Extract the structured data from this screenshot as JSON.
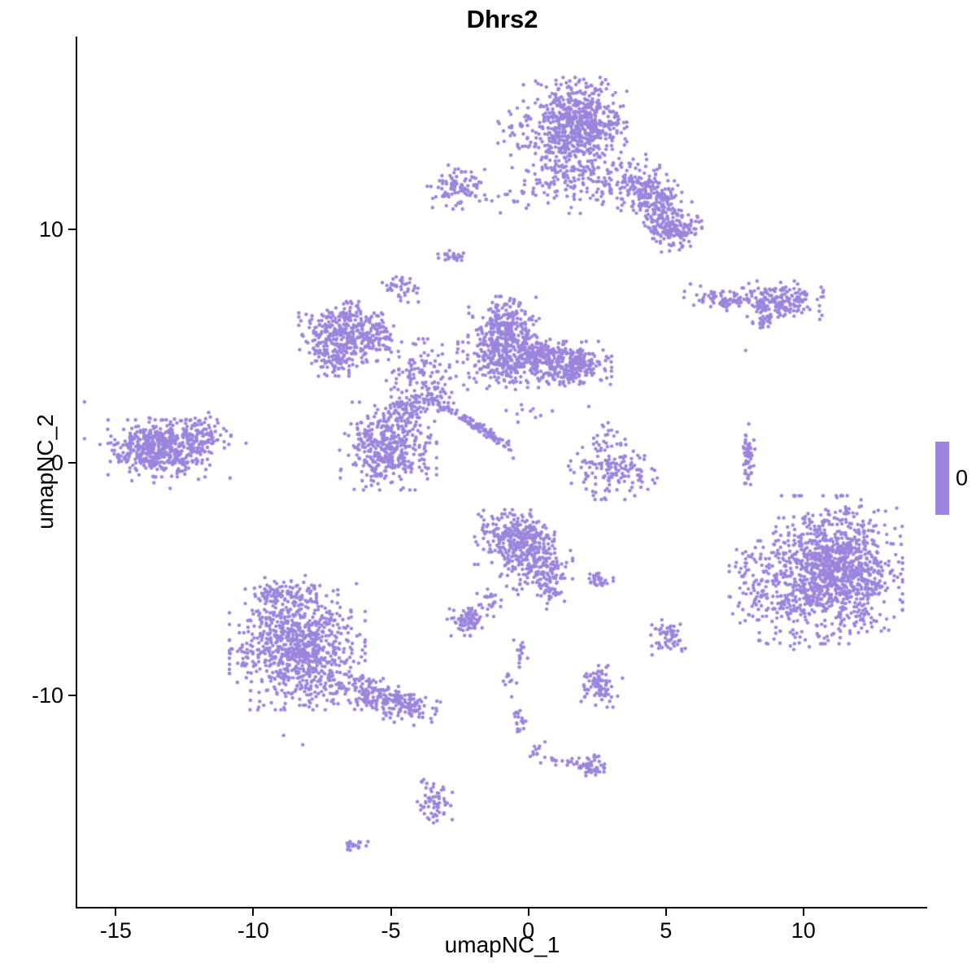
{
  "title": "Dhrs2",
  "chart_data": {
    "type": "scatter",
    "title": "Dhrs2",
    "xlabel": "umapNC_1",
    "ylabel": "umapNC_2",
    "xlim": [
      -16.4,
      14.5
    ],
    "ylim": [
      -19.05,
      18.25
    ],
    "x_ticks": [
      -15,
      -10,
      -5,
      0,
      5,
      10
    ],
    "y_ticks": [
      -10,
      0,
      10
    ],
    "grid": false,
    "legend_position": "right",
    "legend": {
      "label": "0",
      "color": "#9C85DC"
    },
    "point_color": "#9C85DC",
    "point_radius": 2.2,
    "cluster_fields": [
      "cx",
      "cy",
      "sx",
      "sy",
      "n",
      "rot_deg"
    ],
    "clusters": [
      [
        1.7,
        14.5,
        0.8,
        0.85,
        650,
        0
      ],
      [
        1.8,
        12.2,
        1.05,
        0.65,
        170,
        0
      ],
      [
        -0.3,
        14.2,
        0.4,
        0.55,
        35,
        0
      ],
      [
        4.45,
        11.3,
        0.85,
        0.5,
        280,
        -50
      ],
      [
        5.25,
        9.95,
        0.45,
        0.4,
        130,
        0
      ],
      [
        -2.5,
        11.8,
        0.5,
        0.4,
        95,
        0
      ],
      [
        -0.6,
        11.3,
        0.5,
        0.35,
        15,
        0
      ],
      [
        -2.85,
        8.85,
        0.28,
        0.15,
        25,
        0
      ],
      [
        -4.65,
        7.45,
        0.3,
        0.25,
        40,
        0
      ],
      [
        7.3,
        7.0,
        0.7,
        0.22,
        90,
        -5
      ],
      [
        9.2,
        6.95,
        0.65,
        0.35,
        170,
        0
      ],
      [
        8.6,
        6.05,
        0.25,
        0.12,
        22,
        0
      ],
      [
        -6.7,
        5.6,
        0.7,
        0.55,
        300,
        0
      ],
      [
        -7.0,
        4.5,
        0.5,
        0.4,
        100,
        0
      ],
      [
        -5.6,
        5.4,
        0.45,
        0.5,
        60,
        0
      ],
      [
        -4.0,
        4.0,
        0.6,
        0.55,
        90,
        0
      ],
      [
        -3.5,
        2.7,
        0.5,
        0.4,
        70,
        0
      ],
      [
        -0.9,
        5.7,
        0.55,
        0.6,
        280,
        0
      ],
      [
        -0.8,
        4.3,
        0.75,
        0.5,
        250,
        0
      ],
      [
        1.5,
        4.2,
        0.65,
        0.42,
        280,
        0
      ],
      [
        0.4,
        4.6,
        0.5,
        0.45,
        110,
        0
      ],
      [
        -5.1,
        0.7,
        0.75,
        0.8,
        420,
        0
      ],
      [
        -4.5,
        2.3,
        0.32,
        0.38,
        60,
        0
      ],
      [
        -1.85,
        1.5,
        0.78,
        0.1,
        110,
        -38
      ],
      [
        -13.4,
        0.6,
        0.8,
        0.52,
        450,
        0
      ],
      [
        -11.9,
        1.2,
        0.5,
        0.4,
        90,
        0
      ],
      [
        -13.2,
        0.6,
        1.25,
        0.85,
        60,
        0
      ],
      [
        3.1,
        -0.3,
        0.72,
        0.55,
        150,
        0
      ],
      [
        3.0,
        1.2,
        0.3,
        0.3,
        12,
        0
      ],
      [
        8.0,
        0.05,
        0.1,
        0.68,
        55,
        0
      ],
      [
        11.3,
        -4.6,
        0.98,
        1.35,
        1000,
        0
      ],
      [
        9.3,
        -5.2,
        0.85,
        1.2,
        260,
        0
      ],
      [
        8.15,
        -5.4,
        0.35,
        0.95,
        40,
        0
      ],
      [
        -0.5,
        -3.2,
        0.62,
        0.5,
        280,
        0
      ],
      [
        0.2,
        -4.4,
        0.6,
        0.55,
        180,
        0
      ],
      [
        0.9,
        -5.3,
        0.22,
        0.45,
        50,
        0
      ],
      [
        2.5,
        -5.05,
        0.25,
        0.15,
        30,
        0
      ],
      [
        -1.4,
        -5.9,
        0.2,
        0.3,
        25,
        0
      ],
      [
        -2.2,
        -6.8,
        0.32,
        0.27,
        80,
        0
      ],
      [
        -8.4,
        -7.9,
        1.05,
        1.15,
        850,
        0
      ],
      [
        -9.0,
        -5.6,
        0.55,
        0.32,
        90,
        0
      ],
      [
        -5.6,
        -10.0,
        1.0,
        0.35,
        190,
        -20
      ],
      [
        -4.5,
        -10.4,
        0.35,
        0.25,
        60,
        0
      ],
      [
        5.0,
        -7.5,
        0.3,
        0.32,
        55,
        0
      ],
      [
        2.6,
        -9.6,
        0.35,
        0.38,
        80,
        0
      ],
      [
        -0.35,
        -8.3,
        0.16,
        0.3,
        15,
        0
      ],
      [
        -0.7,
        -9.3,
        0.15,
        0.2,
        8,
        0
      ],
      [
        -0.3,
        -11.1,
        0.13,
        0.5,
        20,
        0
      ],
      [
        0.3,
        -12.4,
        0.15,
        0.2,
        10,
        0
      ],
      [
        1.5,
        -12.9,
        0.55,
        0.12,
        25,
        -10
      ],
      [
        2.3,
        -13.0,
        0.3,
        0.2,
        40,
        0
      ],
      [
        -3.4,
        -14.6,
        0.27,
        0.45,
        60,
        0
      ],
      [
        -6.3,
        -16.4,
        0.28,
        0.1,
        18,
        0
      ],
      [
        -0.2,
        2.4,
        0.5,
        0.35,
        10,
        0
      ]
    ],
    "singles": [
      [
        7.9,
        4.8
      ],
      [
        -8.9,
        -11.7
      ],
      [
        -8.2,
        -12.1
      ],
      [
        2.2,
        2.4
      ],
      [
        2.9,
        1.7
      ]
    ]
  }
}
